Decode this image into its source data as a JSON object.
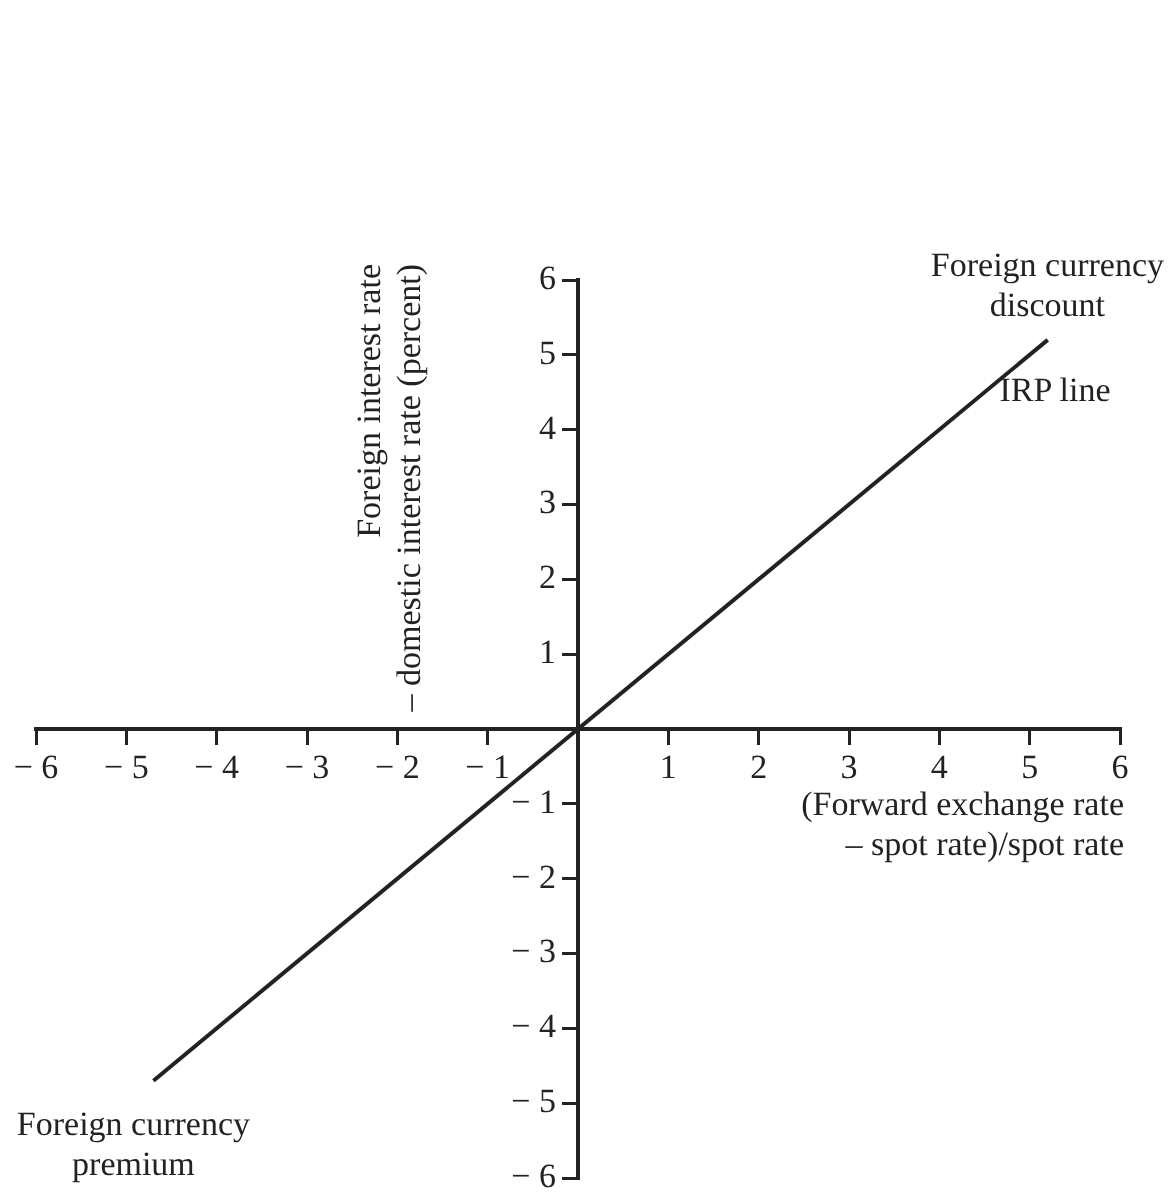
{
  "chart_data": {
    "type": "line",
    "xlabel": "(Forward exchange rate\n– spot rate)/spot rate",
    "ylabel": "Foreign interest rate\n– domestic interest rate (percent)",
    "x": [
      -4.7,
      5.2
    ],
    "series": [
      {
        "color": "#222222",
        "values": [
          -4.7,
          5.2
        ]
      }
    ],
    "xlim": [
      -6,
      6
    ],
    "ylim": [
      -6,
      6
    ],
    "xticks": [
      -6,
      -5,
      -4,
      -3,
      -2,
      -1,
      1,
      2,
      3,
      4,
      5,
      6
    ],
    "yticks": [
      -6,
      -5,
      -4,
      -3,
      -2,
      -1,
      1,
      2,
      3,
      4,
      5,
      6
    ],
    "annotations": [
      {
        "text": "Foreign currency\ndiscount",
        "x": 5.2,
        "y": 5.2
      },
      {
        "text": "IRP line",
        "x": 4.4,
        "y": 4.4
      },
      {
        "text": "Foreign currency\npremium",
        "x": -4.7,
        "y": -4.7
      }
    ],
    "grid": false,
    "legend": false,
    "marker": "none",
    "line_style": "solid"
  }
}
